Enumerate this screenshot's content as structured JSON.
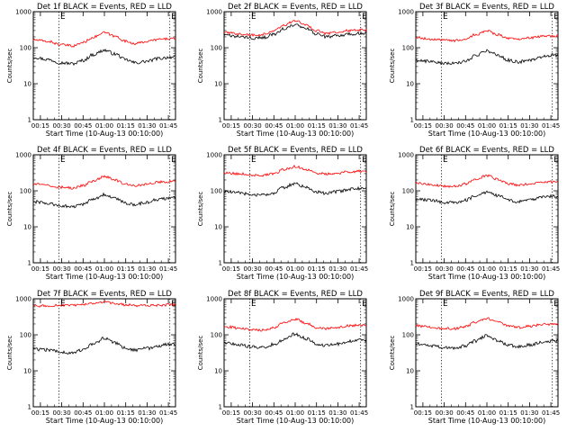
{
  "chart_data": [
    {
      "type": "line",
      "title": "Det 1f BLACK = Events, RED = LLD",
      "xlabel": "Start Time (10-Aug-13 00:10:00)",
      "ylabel": "Counts/sec",
      "yscale": "log",
      "ylim": [
        1,
        1000
      ],
      "y_ticks": [
        "1",
        "10",
        "100",
        "1000"
      ],
      "x_ticks": [
        "00:15",
        "00:30",
        "00:45",
        "01:00",
        "01:15",
        "01:30",
        "01:45"
      ],
      "flags": [
        "E",
        "E"
      ],
      "series": [
        {
          "color": "#000000",
          "x": [
            "00:10",
            "00:20",
            "00:30",
            "00:38",
            "00:45",
            "00:52",
            "01:00",
            "01:08",
            "01:15",
            "01:22",
            "01:30",
            "01:38",
            "01:47"
          ],
          "values": [
            55,
            47,
            38,
            36,
            44,
            64,
            85,
            66,
            46,
            38,
            42,
            50,
            55
          ]
        },
        {
          "color": "#ff0000",
          "x": [
            "00:10",
            "00:20",
            "00:30",
            "00:38",
            "00:45",
            "00:52",
            "01:00",
            "01:08",
            "01:15",
            "01:22",
            "01:30",
            "01:38",
            "01:47"
          ],
          "values": [
            165,
            150,
            120,
            112,
            140,
            195,
            260,
            205,
            150,
            130,
            150,
            170,
            180
          ]
        }
      ]
    },
    {
      "type": "line",
      "title": "Det 2f BLACK = Events, RED = LLD",
      "xlabel": "Start Time (10-Aug-13 00:10:00)",
      "ylabel": "Counts/sec",
      "yscale": "log",
      "ylim": [
        1,
        1000
      ],
      "y_ticks": [
        "1",
        "10",
        "100",
        "1000"
      ],
      "x_ticks": [
        "00:15",
        "00:30",
        "00:45",
        "01:00",
        "01:15",
        "01:30",
        "01:45"
      ],
      "flags": [
        "E",
        "E"
      ],
      "series": [
        {
          "color": "#000000",
          "x": [
            "00:10",
            "00:20",
            "00:30",
            "00:38",
            "00:45",
            "00:52",
            "01:00",
            "01:08",
            "01:15",
            "01:22",
            "01:30",
            "01:38",
            "01:47"
          ],
          "values": [
            220,
            205,
            185,
            190,
            240,
            330,
            430,
            330,
            240,
            200,
            215,
            240,
            250
          ]
        },
        {
          "color": "#ff0000",
          "x": [
            "00:10",
            "00:20",
            "00:30",
            "00:38",
            "00:45",
            "00:52",
            "01:00",
            "01:08",
            "01:15",
            "01:22",
            "01:30",
            "01:38",
            "01:47"
          ],
          "values": [
            260,
            245,
            225,
            235,
            300,
            420,
            560,
            420,
            300,
            250,
            270,
            300,
            310
          ]
        }
      ]
    },
    {
      "type": "line",
      "title": "Det 3f BLACK = Events, RED = LLD",
      "xlabel": "Start Time (10-Aug-13 00:10:00)",
      "ylabel": "Counts/sec",
      "yscale": "log",
      "ylim": [
        1,
        1000
      ],
      "y_ticks": [
        "1",
        "10",
        "100",
        "1000"
      ],
      "x_ticks": [
        "00:15",
        "00:30",
        "00:45",
        "01:00",
        "01:15",
        "01:30",
        "01:45"
      ],
      "flags": [
        "E",
        "E"
      ],
      "series": [
        {
          "color": "#000000",
          "x": [
            "00:10",
            "00:20",
            "00:30",
            "00:38",
            "00:45",
            "00:52",
            "01:00",
            "01:08",
            "01:15",
            "01:22",
            "01:30",
            "01:38",
            "01:47"
          ],
          "values": [
            45,
            42,
            37,
            36,
            42,
            60,
            82,
            62,
            45,
            40,
            45,
            55,
            62
          ]
        },
        {
          "color": "#ff0000",
          "x": [
            "00:10",
            "00:20",
            "00:30",
            "00:38",
            "00:45",
            "00:52",
            "01:00",
            "01:08",
            "01:15",
            "01:22",
            "01:30",
            "01:38",
            "01:47"
          ],
          "values": [
            190,
            175,
            160,
            158,
            180,
            230,
            290,
            230,
            180,
            168,
            185,
            205,
            210
          ]
        }
      ]
    },
    {
      "type": "line",
      "title": "Det 4f BLACK = Events, RED = LLD",
      "xlabel": "Start Time (10-Aug-13 00:10:00)",
      "ylabel": "Counts/sec",
      "yscale": "log",
      "ylim": [
        1,
        1000
      ],
      "y_ticks": [
        "1",
        "10",
        "100",
        "1000"
      ],
      "x_ticks": [
        "00:15",
        "00:30",
        "00:45",
        "01:00",
        "01:15",
        "01:30",
        "01:45"
      ],
      "flags": [
        "E",
        "E"
      ],
      "series": [
        {
          "color": "#000000",
          "x": [
            "00:10",
            "00:20",
            "00:30",
            "00:38",
            "00:45",
            "00:52",
            "01:00",
            "01:08",
            "01:15",
            "01:22",
            "01:30",
            "01:38",
            "01:47"
          ],
          "values": [
            50,
            45,
            38,
            36,
            42,
            58,
            78,
            60,
            45,
            42,
            48,
            58,
            65
          ]
        },
        {
          "color": "#ff0000",
          "x": [
            "00:10",
            "00:20",
            "00:30",
            "00:38",
            "00:45",
            "00:52",
            "01:00",
            "01:08",
            "01:15",
            "01:22",
            "01:30",
            "01:38",
            "01:47"
          ],
          "values": [
            155,
            140,
            125,
            120,
            140,
            185,
            250,
            195,
            150,
            140,
            155,
            175,
            180
          ]
        }
      ]
    },
    {
      "type": "line",
      "title": "Det 5f BLACK = Events, RED = LLD",
      "xlabel": "Start Time (10-Aug-13 00:10:00)",
      "ylabel": "Counts/sec",
      "yscale": "log",
      "ylim": [
        1,
        1000
      ],
      "y_ticks": [
        "1",
        "10",
        "100",
        "1000"
      ],
      "x_ticks": [
        "00:15",
        "00:30",
        "00:45",
        "01:00",
        "01:15",
        "01:30",
        "01:45"
      ],
      "flags": [
        "E",
        "E"
      ],
      "series": [
        {
          "color": "#000000",
          "x": [
            "00:10",
            "00:20",
            "00:30",
            "00:38",
            "00:45",
            "00:52",
            "01:00",
            "01:08",
            "01:15",
            "01:22",
            "01:30",
            "01:38",
            "01:47"
          ],
          "values": [
            95,
            88,
            78,
            75,
            88,
            125,
            160,
            125,
            92,
            85,
            95,
            112,
            118
          ]
        },
        {
          "color": "#ff0000",
          "x": [
            "00:10",
            "00:20",
            "00:30",
            "00:38",
            "00:45",
            "00:52",
            "01:00",
            "01:08",
            "01:15",
            "01:22",
            "01:30",
            "01:38",
            "01:47"
          ],
          "values": [
            320,
            300,
            275,
            270,
            300,
            390,
            470,
            390,
            310,
            290,
            310,
            340,
            350
          ]
        }
      ]
    },
    {
      "type": "line",
      "title": "Det 6f BLACK = Events, RED = LLD",
      "xlabel": "Start Time (10-Aug-13 00:10:00)",
      "ylabel": "Counts/sec",
      "yscale": "log",
      "ylim": [
        1,
        1000
      ],
      "y_ticks": [
        "1",
        "10",
        "100",
        "1000"
      ],
      "x_ticks": [
        "00:15",
        "00:30",
        "00:45",
        "01:00",
        "01:15",
        "01:30",
        "01:45"
      ],
      "flags": [
        "E",
        "E"
      ],
      "series": [
        {
          "color": "#000000",
          "x": [
            "00:10",
            "00:20",
            "00:30",
            "00:38",
            "00:45",
            "00:52",
            "01:00",
            "01:08",
            "01:15",
            "01:22",
            "01:30",
            "01:38",
            "01:47"
          ],
          "values": [
            60,
            55,
            48,
            47,
            55,
            72,
            92,
            72,
            55,
            50,
            55,
            65,
            70
          ]
        },
        {
          "color": "#ff0000",
          "x": [
            "00:10",
            "00:20",
            "00:30",
            "00:38",
            "00:45",
            "00:52",
            "01:00",
            "01:08",
            "01:15",
            "01:22",
            "01:30",
            "01:38",
            "01:47"
          ],
          "values": [
            160,
            148,
            135,
            132,
            155,
            205,
            265,
            205,
            158,
            145,
            155,
            175,
            180
          ]
        }
      ]
    },
    {
      "type": "line",
      "title": "Det 7f BLACK = Events, RED = LLD",
      "xlabel": "Start Time (10-Aug-13 00:10:00)",
      "ylabel": "Counts/sec",
      "yscale": "log",
      "ylim": [
        1,
        1000
      ],
      "y_ticks": [
        "1",
        "10",
        "100",
        "1000"
      ],
      "x_ticks": [
        "00:15",
        "00:30",
        "00:45",
        "01:00",
        "01:15",
        "01:30",
        "01:45"
      ],
      "flags": [
        "E",
        "E"
      ],
      "series": [
        {
          "color": "#000000",
          "x": [
            "00:10",
            "00:20",
            "00:30",
            "00:38",
            "00:45",
            "00:52",
            "01:00",
            "01:08",
            "01:15",
            "01:22",
            "01:30",
            "01:38",
            "01:47"
          ],
          "values": [
            40,
            38,
            33,
            32,
            38,
            55,
            80,
            60,
            42,
            38,
            42,
            50,
            55
          ]
        },
        {
          "color": "#ff0000",
          "x": [
            "00:10",
            "00:20",
            "00:30",
            "00:38",
            "00:45",
            "00:52",
            "01:00",
            "01:08",
            "01:15",
            "01:22",
            "01:30",
            "01:38",
            "01:47"
          ],
          "values": [
            620,
            640,
            660,
            650,
            680,
            740,
            800,
            740,
            680,
            650,
            650,
            660,
            680
          ]
        }
      ]
    },
    {
      "type": "line",
      "title": "Det 8f BLACK = Events, RED = LLD",
      "xlabel": "Start Time (10-Aug-13 00:10:00)",
      "ylabel": "Counts/sec",
      "yscale": "log",
      "ylim": [
        1,
        1000
      ],
      "y_ticks": [
        "1",
        "10",
        "100",
        "1000"
      ],
      "x_ticks": [
        "00:15",
        "00:30",
        "00:45",
        "01:00",
        "01:15",
        "01:30",
        "01:45"
      ],
      "flags": [
        "E",
        "E"
      ],
      "series": [
        {
          "color": "#000000",
          "x": [
            "00:10",
            "00:20",
            "00:30",
            "00:38",
            "00:45",
            "00:52",
            "01:00",
            "01:08",
            "01:15",
            "01:22",
            "01:30",
            "01:38",
            "01:47"
          ],
          "values": [
            60,
            54,
            46,
            45,
            54,
            75,
            105,
            78,
            56,
            50,
            56,
            66,
            72
          ]
        },
        {
          "color": "#ff0000",
          "x": [
            "00:10",
            "00:20",
            "00:30",
            "00:38",
            "00:45",
            "00:52",
            "01:00",
            "01:08",
            "01:15",
            "01:22",
            "01:30",
            "01:38",
            "01:47"
          ],
          "values": [
            170,
            155,
            138,
            135,
            160,
            215,
            270,
            210,
            160,
            148,
            160,
            180,
            185
          ]
        }
      ]
    },
    {
      "type": "line",
      "title": "Det 9f BLACK = Events, RED = LLD",
      "xlabel": "Start Time (10-Aug-13 00:10:00)",
      "ylabel": "Counts/sec",
      "yscale": "log",
      "ylim": [
        1,
        1000
      ],
      "y_ticks": [
        "1",
        "10",
        "100",
        "1000"
      ],
      "x_ticks": [
        "00:15",
        "00:30",
        "00:45",
        "01:00",
        "01:15",
        "01:30",
        "01:45"
      ],
      "flags": [
        "E",
        "E"
      ],
      "series": [
        {
          "color": "#000000",
          "x": [
            "00:10",
            "00:20",
            "00:30",
            "00:38",
            "00:45",
            "00:52",
            "01:00",
            "01:08",
            "01:15",
            "01:22",
            "01:30",
            "01:38",
            "01:47"
          ],
          "values": [
            55,
            50,
            44,
            43,
            50,
            68,
            95,
            70,
            52,
            47,
            52,
            62,
            68
          ]
        },
        {
          "color": "#ff0000",
          "x": [
            "00:10",
            "00:20",
            "00:30",
            "00:38",
            "00:45",
            "00:52",
            "01:00",
            "01:08",
            "01:15",
            "01:22",
            "01:30",
            "01:38",
            "01:47"
          ],
          "values": [
            180,
            165,
            150,
            148,
            170,
            225,
            285,
            225,
            172,
            160,
            172,
            192,
            200
          ]
        }
      ]
    }
  ]
}
